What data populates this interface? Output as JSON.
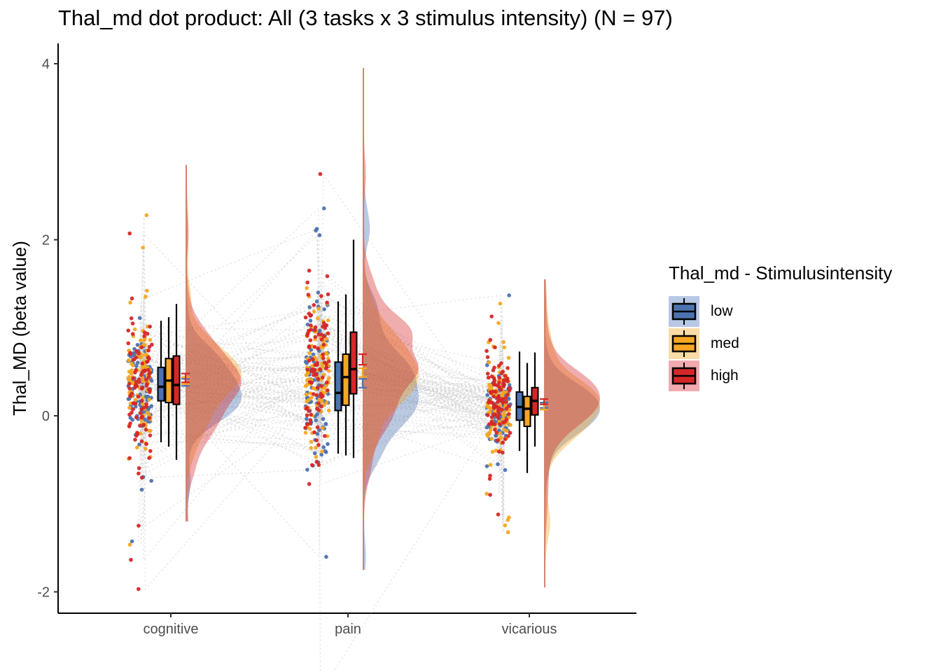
{
  "title": "Thal_md dot product: All (3 tasks x 3 stimulus intensity) (N = 97)",
  "legend": {
    "title": "Thal_md - Stimulusintensity",
    "items": [
      {
        "label": "low",
        "color": "#4C72B0",
        "fill": "#b9c8e6"
      },
      {
        "label": "med",
        "color": "#F5A623",
        "fill": "#fbdca6"
      },
      {
        "label": "high",
        "color": "#D62728",
        "fill": "#f0aab0"
      }
    ]
  },
  "chart_data": {
    "type": "raincloud",
    "title": "Thal_md dot product: All (3 tasks x 3 stimulus intensity) (N = 97)",
    "xlabel": "",
    "ylabel": "Thal_MD  (beta value)",
    "categories": [
      "cognitive",
      "pain",
      "vicarious"
    ],
    "y_ticks": [
      -2,
      0,
      2,
      4
    ],
    "ylim": [
      -2.25,
      4.2
    ],
    "grid": false,
    "legend_position": "right",
    "n_subjects": 97,
    "series": [
      {
        "name": "low",
        "color": "#4C72B0",
        "box": [
          {
            "whisker_low": -0.3,
            "q1": 0.17,
            "median": 0.33,
            "q3": 0.55,
            "whisker_high": 1.08
          },
          {
            "whisker_low": -0.43,
            "q1": 0.06,
            "median": 0.26,
            "q3": 0.61,
            "whisker_high": 1.3
          },
          {
            "whisker_low": -0.4,
            "q1": -0.05,
            "median": 0.1,
            "q3": 0.27,
            "whisker_high": 0.73
          }
        ],
        "mean": [
          0.38,
          0.37,
          0.12
        ],
        "se": [
          0.04,
          0.05,
          0.03
        ]
      },
      {
        "name": "med",
        "color": "#F5A623",
        "box": [
          {
            "whisker_low": -0.35,
            "q1": 0.15,
            "median": 0.4,
            "q3": 0.65,
            "whisker_high": 1.12
          },
          {
            "whisker_low": -0.45,
            "q1": 0.12,
            "median": 0.44,
            "q3": 0.7,
            "whisker_high": 1.38
          },
          {
            "whisker_low": -0.65,
            "q1": -0.12,
            "median": 0.08,
            "q3": 0.22,
            "whisker_high": 0.6
          }
        ],
        "mean": [
          0.4,
          0.49,
          0.1
        ],
        "se": [
          0.04,
          0.05,
          0.03
        ]
      },
      {
        "name": "high",
        "color": "#D62728",
        "box": [
          {
            "whisker_low": -0.5,
            "q1": 0.13,
            "median": 0.35,
            "q3": 0.68,
            "whisker_high": 1.27
          },
          {
            "whisker_low": -0.48,
            "q1": 0.25,
            "median": 0.53,
            "q3": 0.95,
            "whisker_high": 2.0
          },
          {
            "whisker_low": -0.35,
            "q1": 0.01,
            "median": 0.17,
            "q3": 0.32,
            "whisker_high": 0.72
          }
        ],
        "mean": [
          0.43,
          0.64,
          0.16
        ],
        "se": [
          0.05,
          0.06,
          0.03
        ]
      }
    ],
    "distribution": [
      {
        "category": "cognitive",
        "range": [
          -1.2,
          2.85
        ],
        "peak_y": 0.3
      },
      {
        "category": "pain",
        "range": [
          -1.75,
          3.95
        ],
        "peak_y": 0.25
      },
      {
        "category": "vicarious",
        "range": [
          -1.95,
          1.55
        ],
        "peak_y": 0.15
      }
    ]
  }
}
